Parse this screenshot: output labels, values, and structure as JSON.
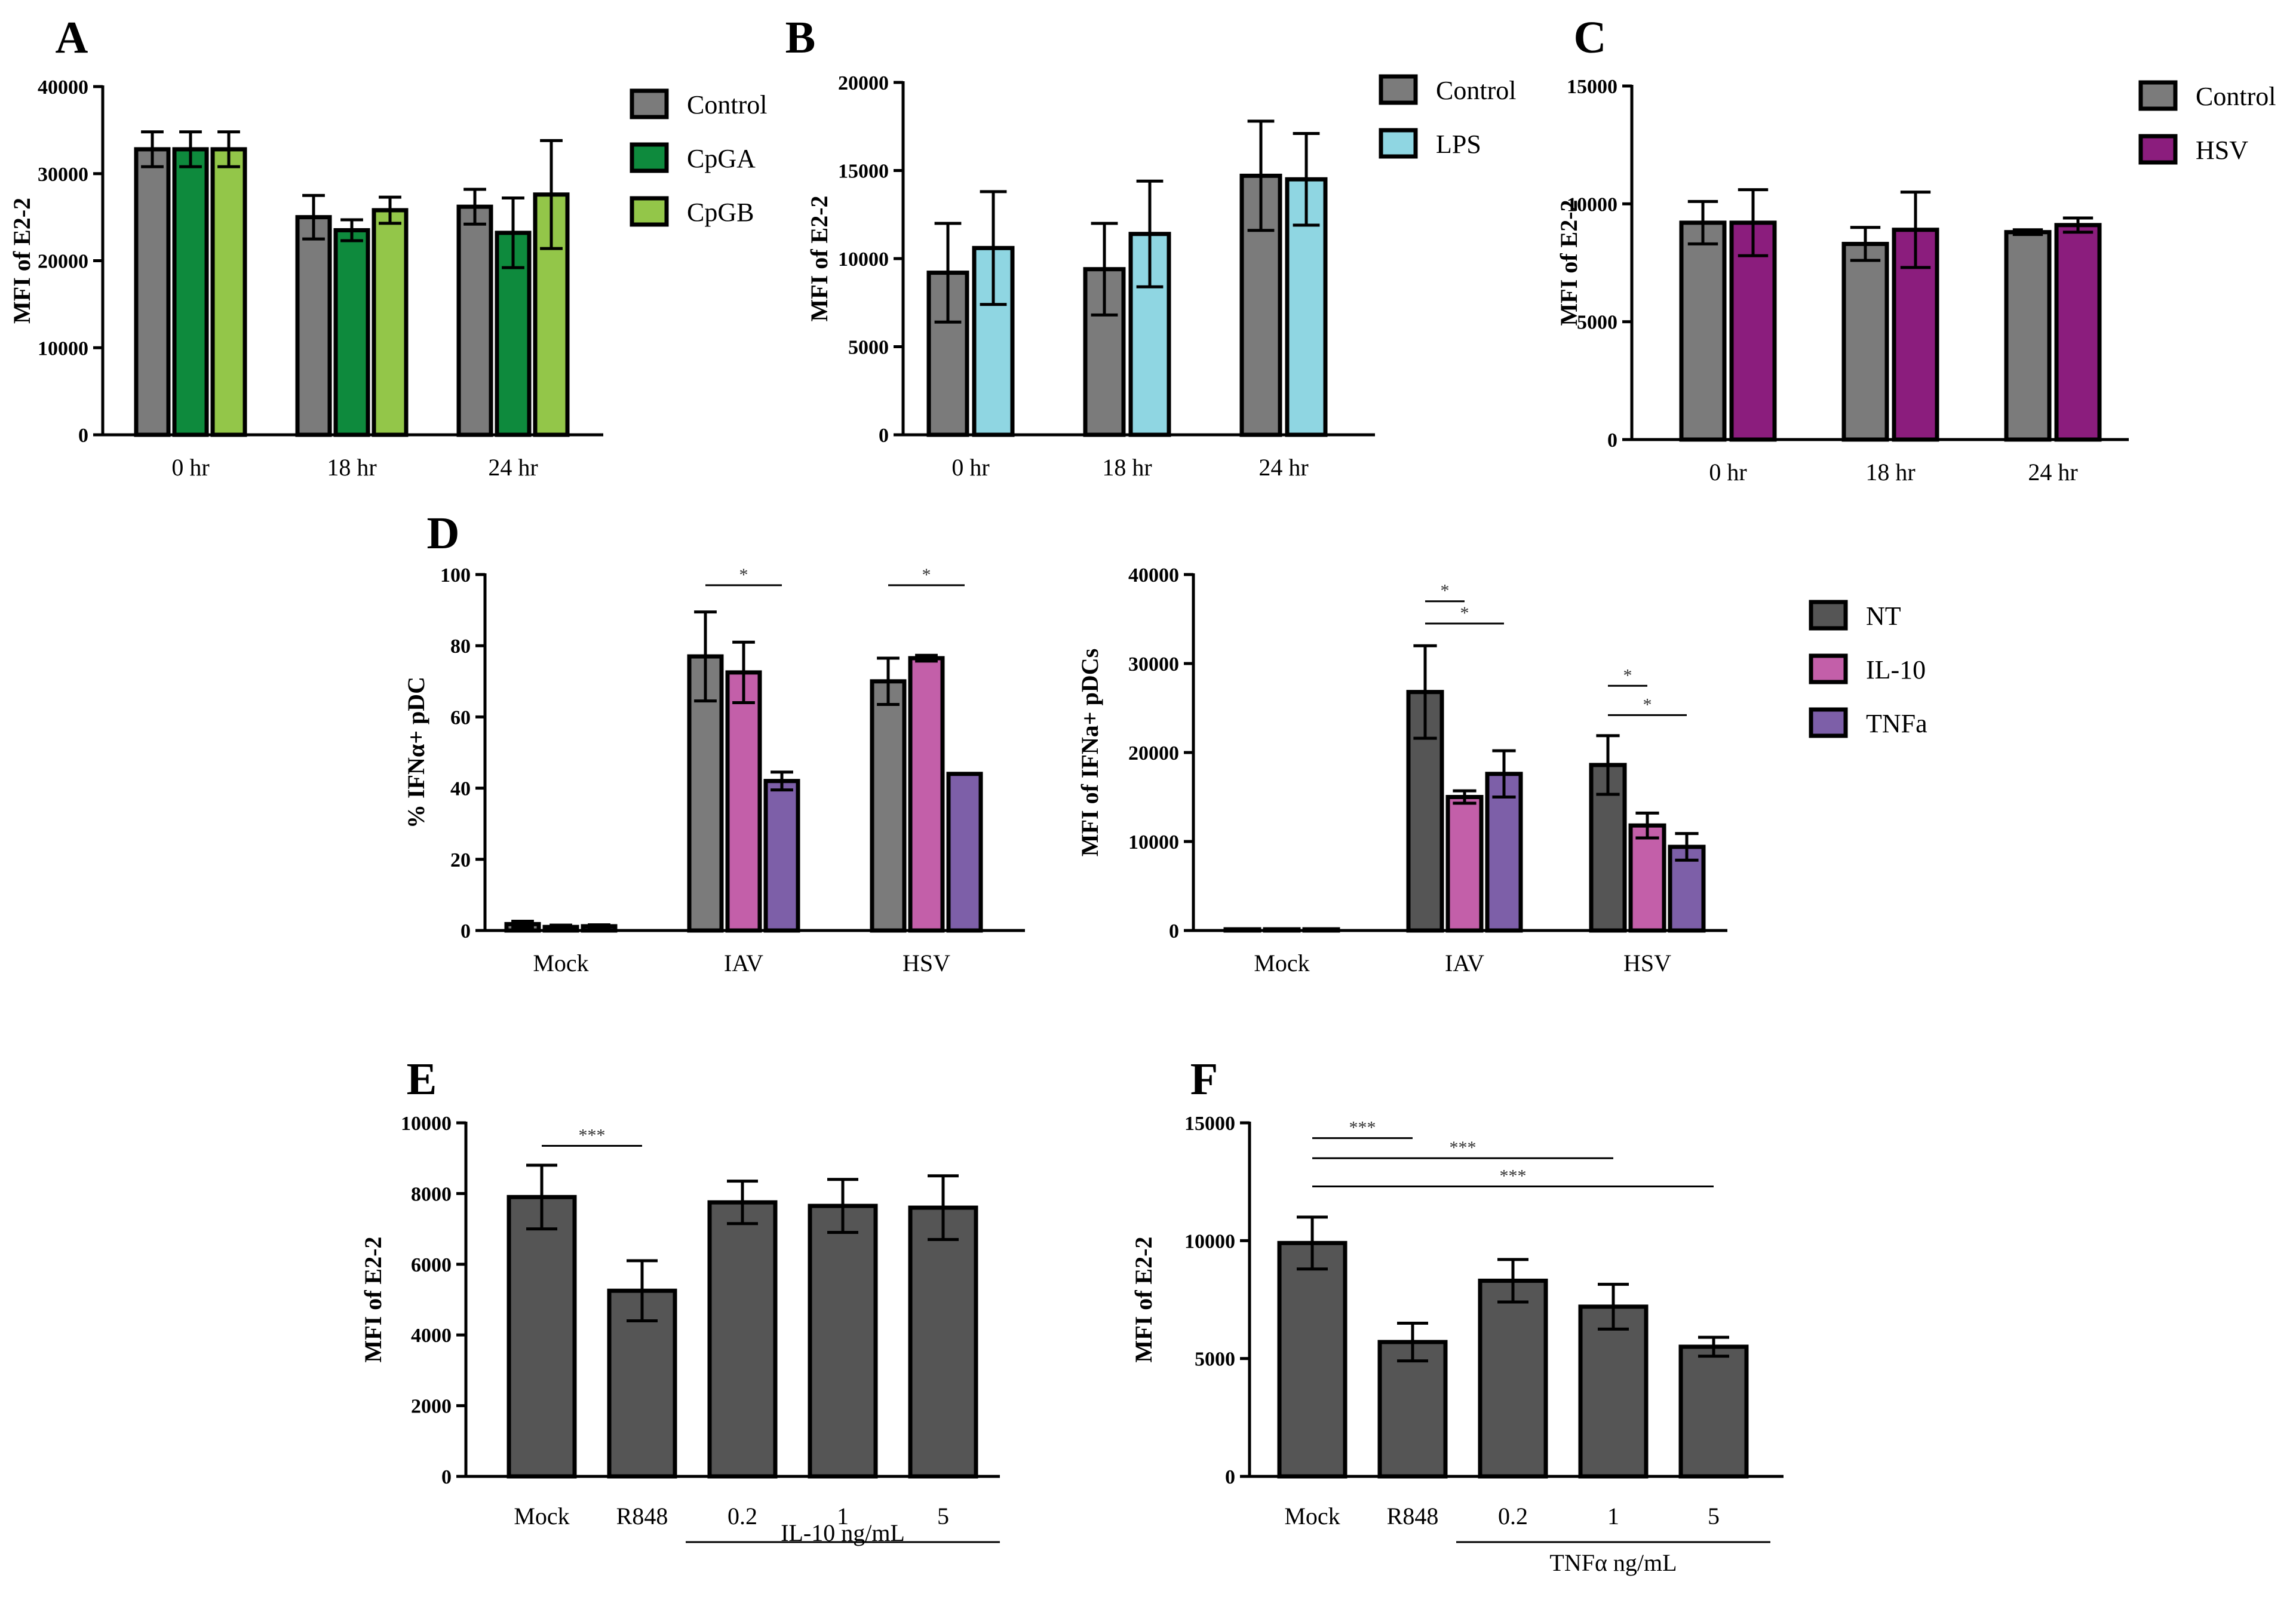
{
  "colors": {
    "control": "#7b7b7b",
    "dark": "#555555",
    "cpga": "#0e8a3d",
    "cpgb": "#93c649",
    "lps": "#8fd6e2",
    "hsv": "#8b1d7d",
    "il10": "#c35fa9",
    "tnfa": "#7d5fa8"
  },
  "chart_data": [
    {
      "id": "A",
      "type": "bar",
      "panel_label": "A",
      "ylabel": "MFI of E2-2",
      "ylim": [
        0,
        40000
      ],
      "yticks": [
        "0",
        "10000",
        "20000",
        "30000",
        "40000"
      ],
      "categories": [
        "0 hr",
        "18 hr",
        "24 hr"
      ],
      "series": [
        {
          "name": "Control",
          "color": "#7b7b7b",
          "values": [
            32800,
            25000,
            26200
          ],
          "errors": [
            2000,
            2500,
            2000
          ]
        },
        {
          "name": "CpGA",
          "color": "#0e8a3d",
          "values": [
            32800,
            23500,
            23200
          ],
          "errors": [
            2000,
            1200,
            4000
          ]
        },
        {
          "name": "CpGB",
          "color": "#93c649",
          "values": [
            32800,
            25800,
            27600
          ],
          "errors": [
            2000,
            1500,
            6200
          ]
        }
      ]
    },
    {
      "id": "B",
      "type": "bar",
      "panel_label": "B",
      "ylabel": "MFI of E2-2",
      "ylim": [
        0,
        20000
      ],
      "yticks": [
        "0",
        "5000",
        "10000",
        "15000",
        "20000"
      ],
      "categories": [
        "0 hr",
        "18 hr",
        "24 hr"
      ],
      "series": [
        {
          "name": "Control",
          "color": "#7b7b7b",
          "values": [
            9200,
            9400,
            14700
          ],
          "errors": [
            2800,
            2600,
            3100
          ]
        },
        {
          "name": "LPS",
          "color": "#8fd6e2",
          "values": [
            10600,
            11400,
            14500
          ],
          "errors": [
            3200,
            3000,
            2600
          ]
        }
      ]
    },
    {
      "id": "C",
      "type": "bar",
      "panel_label": "C",
      "ylabel": "MFI of E2-2",
      "ylim": [
        0,
        15000
      ],
      "yticks": [
        "0",
        "5000",
        "10000",
        "15000"
      ],
      "categories": [
        "0 hr",
        "18 hr",
        "24 hr"
      ],
      "series": [
        {
          "name": "Control",
          "color": "#7b7b7b",
          "values": [
            9200,
            8300,
            8800
          ],
          "errors": [
            900,
            700,
            100
          ]
        },
        {
          "name": "HSV",
          "color": "#8b1d7d",
          "values": [
            9200,
            8900,
            9100
          ],
          "errors": [
            1400,
            1600,
            300
          ]
        }
      ]
    },
    {
      "id": "D1",
      "type": "bar",
      "panel_label": "D",
      "ylabel": "% IFNα+ pDC",
      "ylim": [
        0,
        100
      ],
      "yticks": [
        "0",
        "20",
        "40",
        "60",
        "80",
        "100"
      ],
      "categories": [
        "Mock",
        "IAV",
        "HSV"
      ],
      "series": [
        {
          "name": "NT",
          "color": "#7b7b7b",
          "values": [
            1.8,
            77,
            70
          ],
          "errors": [
            0.8,
            12.5,
            6.5
          ]
        },
        {
          "name": "IL-10",
          "color": "#c35fa9",
          "values": [
            1.0,
            72.5,
            76.5
          ],
          "errors": [
            0.5,
            8.5,
            0.8
          ]
        },
        {
          "name": "TNFa",
          "color": "#7d5fa8",
          "values": [
            1.2,
            42,
            44
          ],
          "errors": [
            0.4,
            2.5,
            0
          ]
        }
      ],
      "annotations": [
        {
          "text": "*",
          "from": [
            1,
            0
          ],
          "to": [
            1,
            2
          ],
          "level": 97
        },
        {
          "text": "*",
          "from": [
            2,
            0
          ],
          "to": [
            2,
            2
          ],
          "level": 97
        }
      ]
    },
    {
      "id": "D2",
      "type": "bar",
      "ylabel": "MFI of IFNa+ pDCs",
      "ylim": [
        0,
        40000
      ],
      "yticks": [
        "0",
        "10000",
        "20000",
        "30000",
        "40000"
      ],
      "categories": [
        "Mock",
        "IAV",
        "HSV"
      ],
      "series": [
        {
          "name": "NT",
          "color": "#555555",
          "values": [
            0,
            26800,
            18600
          ],
          "errors": [
            0,
            5200,
            3300
          ]
        },
        {
          "name": "IL-10",
          "color": "#c35fa9",
          "values": [
            0,
            15000,
            11800
          ],
          "errors": [
            0,
            700,
            1400
          ]
        },
        {
          "name": "TNFa",
          "color": "#7d5fa8",
          "values": [
            0,
            17600,
            9400
          ],
          "errors": [
            0,
            2600,
            1500
          ]
        }
      ],
      "annotations": [
        {
          "text": "*",
          "from": [
            1,
            0
          ],
          "to": [
            1,
            1
          ],
          "level": 37000
        },
        {
          "text": "*",
          "from": [
            1,
            0
          ],
          "to": [
            1,
            2
          ],
          "level": 34500
        },
        {
          "text": "*",
          "from": [
            2,
            0
          ],
          "to": [
            2,
            1
          ],
          "level": 27500
        },
        {
          "text": "*",
          "from": [
            2,
            0
          ],
          "to": [
            2,
            2
          ],
          "level": 24200
        }
      ]
    },
    {
      "id": "E",
      "type": "bar",
      "panel_label": "E",
      "ylabel": "MFI of E2-2",
      "ylim": [
        0,
        10000
      ],
      "yticks": [
        "0",
        "2000",
        "4000",
        "6000",
        "8000",
        "10000"
      ],
      "categories": [
        "Mock",
        "R848",
        "0.2",
        "1",
        "5"
      ],
      "series": [
        {
          "name": "",
          "color": "#555555",
          "values": [
            7900,
            5250,
            7750,
            7650,
            7600
          ],
          "errors": [
            900,
            850,
            600,
            750,
            900
          ]
        }
      ],
      "group_label": {
        "text": "IL-10 ng/mL",
        "from": 2,
        "to": 4
      },
      "annotations": [
        {
          "text": "***",
          "from": [
            0,
            0
          ],
          "to": [
            1,
            0
          ],
          "level": 9350
        }
      ]
    },
    {
      "id": "F",
      "type": "bar",
      "panel_label": "F",
      "ylabel": "MFI of E2-2",
      "ylim": [
        0,
        15000
      ],
      "yticks": [
        "0",
        "5000",
        "10000",
        "15000"
      ],
      "categories": [
        "Mock",
        "R848",
        "0.2",
        "1",
        "5"
      ],
      "series": [
        {
          "name": "",
          "color": "#555555",
          "values": [
            9900,
            5700,
            8300,
            7200,
            5500
          ],
          "errors": [
            1100,
            800,
            900,
            950,
            400
          ]
        }
      ],
      "group_label": {
        "text": "TNFα ng/mL",
        "from": 2,
        "to": 4
      },
      "annotations": [
        {
          "text": "***",
          "from": [
            0,
            0
          ],
          "to": [
            1,
            0
          ],
          "level": 14350
        },
        {
          "text": "***",
          "from": [
            0,
            0
          ],
          "to": [
            3,
            0
          ],
          "level": 13500
        },
        {
          "text": "***",
          "from": [
            0,
            0
          ],
          "to": [
            4,
            0
          ],
          "level": 12300
        }
      ]
    }
  ]
}
